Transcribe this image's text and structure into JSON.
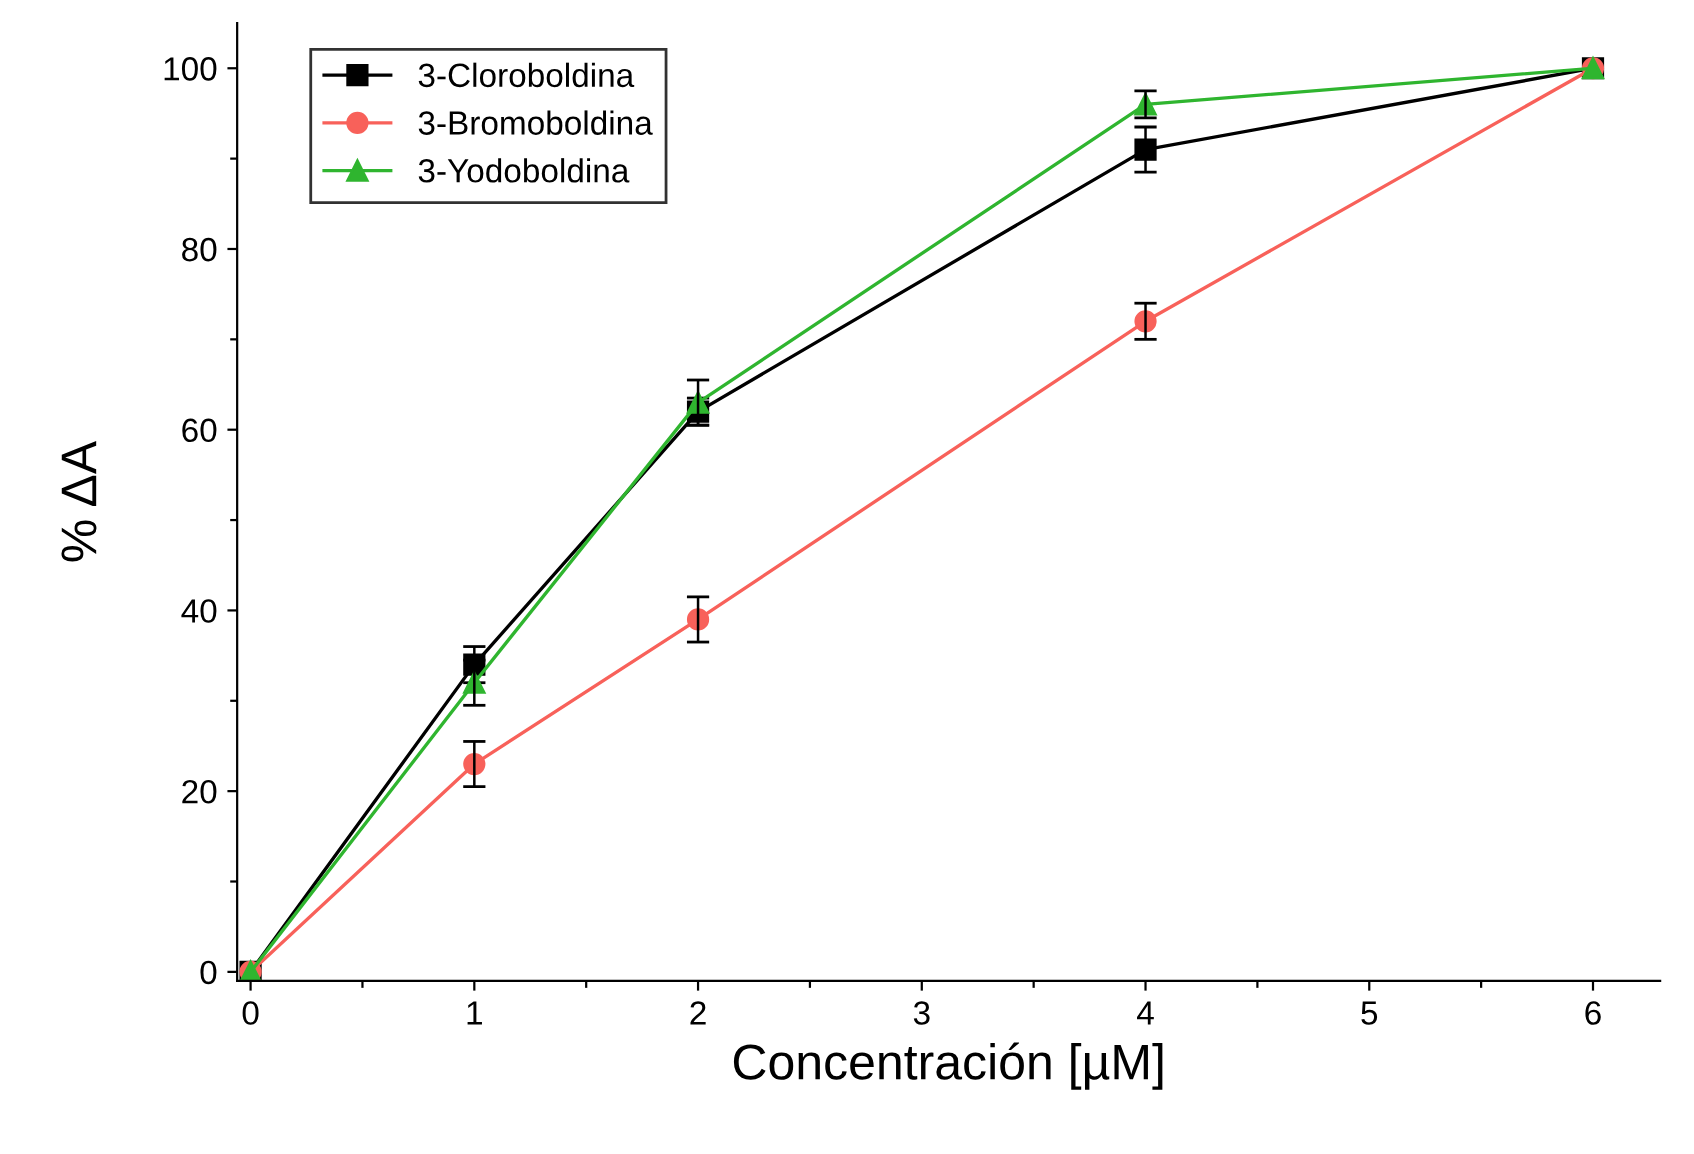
{
  "chart_data": {
    "type": "line",
    "xlabel": "Concentración [µM]",
    "ylabel": "% ΔA",
    "x": [
      0,
      1,
      2,
      4,
      6
    ],
    "series": [
      {
        "name": "3-Cloroboldina",
        "color": "#000000",
        "marker": "square",
        "values": [
          0,
          34,
          62,
          91,
          100
        ],
        "errors": [
          null,
          2,
          1.5,
          2.5,
          null
        ]
      },
      {
        "name": "3-Bromoboldina",
        "color": "#f8615a",
        "marker": "circle",
        "values": [
          0,
          23,
          39,
          72,
          100
        ],
        "errors": [
          null,
          2.5,
          2.5,
          2,
          null
        ]
      },
      {
        "name": "3-Yodoboldina",
        "color": "#2fb52f",
        "marker": "triangle",
        "values": [
          0,
          32,
          63,
          96,
          100
        ],
        "errors": [
          null,
          2.5,
          2.5,
          1.5,
          null
        ]
      }
    ],
    "xlim": [
      -0.06,
      6.3
    ],
    "ylim": [
      -1,
      105
    ],
    "xticks": [
      0,
      {
        "value": 0.5,
        "label": null
      },
      1,
      {
        "value": 1.5,
        "label": null
      },
      2,
      {
        "value": 2.5,
        "label": null
      },
      3,
      {
        "value": 3.5,
        "label": null
      },
      4,
      {
        "value": 4.5,
        "label": null
      },
      5,
      {
        "value": 5.5,
        "label": null
      },
      6
    ],
    "yticks": [
      0,
      {
        "value": 10,
        "label": null
      },
      20,
      {
        "value": 30,
        "label": null
      },
      40,
      {
        "value": 50,
        "label": null
      },
      60,
      {
        "value": 70,
        "label": null
      },
      80,
      {
        "value": 90,
        "label": null
      },
      100
    ],
    "grid": false,
    "legend": "top left",
    "line_style": "solid"
  }
}
